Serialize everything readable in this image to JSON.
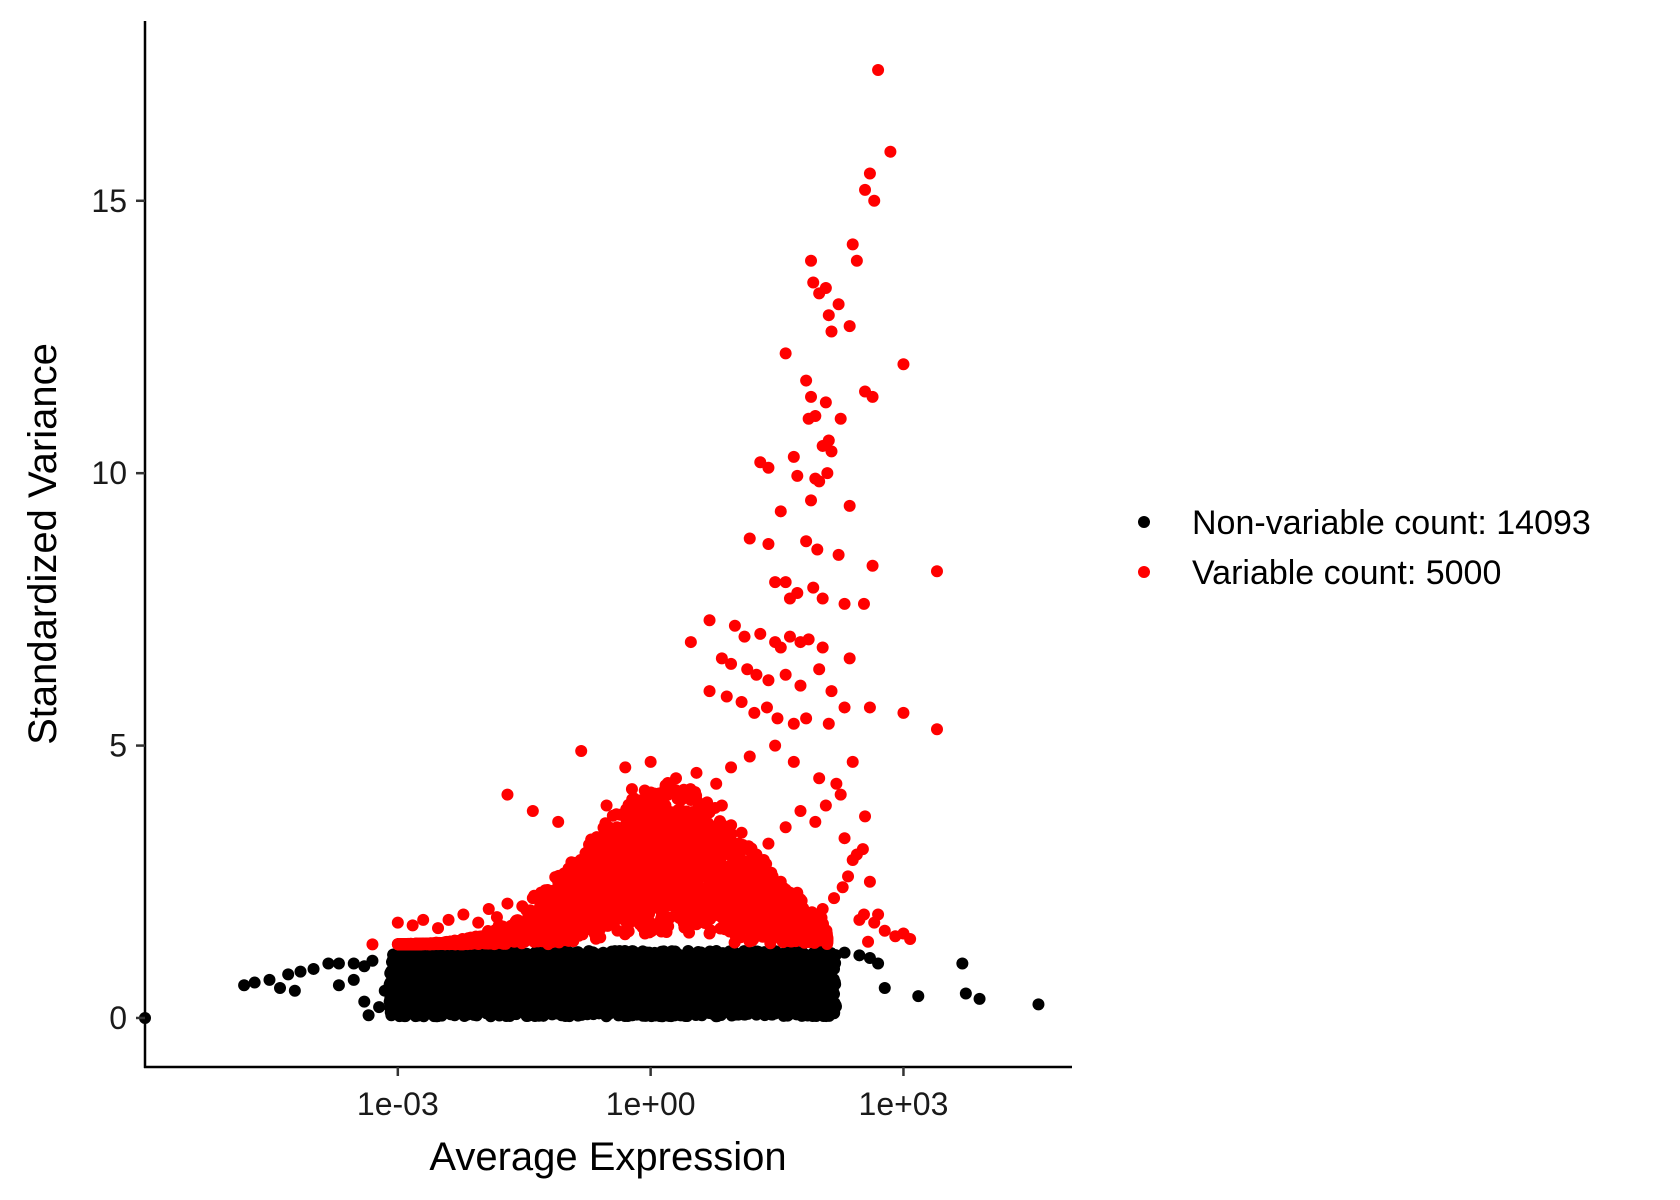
{
  "chart_data": {
    "type": "scatter",
    "title": "",
    "xlabel": "Average Expression",
    "ylabel": "Standardized Variance",
    "x_scale": "log10",
    "xlim": [
      1e-06,
      100000.0
    ],
    "ylim": [
      -0.9,
      18.3
    ],
    "x_ticks": [
      {
        "value": 0.001,
        "label": "1e-03"
      },
      {
        "value": 1,
        "label": "1e+00"
      },
      {
        "value": 1000,
        "label": "1e+03"
      }
    ],
    "y_ticks": [
      {
        "value": 0,
        "label": "0"
      },
      {
        "value": 5,
        "label": "5"
      },
      {
        "value": 10,
        "label": "10"
      },
      {
        "value": 15,
        "label": "15"
      }
    ],
    "grid": false,
    "legend_position": "right",
    "series": [
      {
        "name": "Non-variable count: 14093",
        "color": "#000000",
        "count": 14093,
        "points": [
          [
            1e-06,
            0.0
          ],
          [
            1.5e-05,
            0.6
          ],
          [
            2e-05,
            0.65
          ],
          [
            3e-05,
            0.7
          ],
          [
            5e-05,
            0.8
          ],
          [
            7e-05,
            0.85
          ],
          [
            0.0001,
            0.9
          ],
          [
            4e-05,
            0.55
          ],
          [
            6e-05,
            0.5
          ],
          [
            0.00015,
            1.0
          ],
          [
            0.0002,
            1.0
          ],
          [
            0.0003,
            1.0
          ],
          [
            0.0004,
            0.95
          ],
          [
            0.0005,
            1.05
          ],
          [
            0.0003,
            0.7
          ],
          [
            0.0004,
            0.3
          ],
          [
            0.00045,
            0.05
          ],
          [
            0.0002,
            0.6
          ],
          [
            0.0006,
            0.2
          ],
          [
            0.0008,
            0.3
          ],
          [
            0.0007,
            0.5
          ],
          [
            0.001,
            0.1
          ],
          [
            20,
            0.15
          ],
          [
            150,
            0.9
          ],
          [
            200,
            1.2
          ],
          [
            300,
            1.15
          ],
          [
            400,
            1.1
          ],
          [
            500,
            1.0
          ],
          [
            600,
            0.55
          ],
          [
            1500,
            0.4
          ],
          [
            5000,
            1.0
          ],
          [
            5500,
            0.45
          ],
          [
            8000,
            0.35
          ],
          [
            40000,
            0.25
          ]
        ]
      },
      {
        "name": "Variable count: 5000",
        "color": "#ff0000",
        "count": 5000,
        "points": [
          [
            500,
            17.4
          ],
          [
            700,
            15.9
          ],
          [
            400,
            15.5
          ],
          [
            350,
            15.2
          ],
          [
            450,
            15.0
          ],
          [
            250,
            14.2
          ],
          [
            280,
            13.9
          ],
          [
            80,
            13.9
          ],
          [
            85,
            13.5
          ],
          [
            120,
            13.4
          ],
          [
            100,
            13.3
          ],
          [
            130,
            12.9
          ],
          [
            170,
            13.1
          ],
          [
            140,
            12.6
          ],
          [
            230,
            12.7
          ],
          [
            40,
            12.2
          ],
          [
            1000,
            12.0
          ],
          [
            70,
            11.7
          ],
          [
            80,
            11.4
          ],
          [
            120,
            11.3
          ],
          [
            350,
            11.5
          ],
          [
            430,
            11.4
          ],
          [
            75,
            11.0
          ],
          [
            90,
            11.05
          ],
          [
            180,
            11.0
          ],
          [
            110,
            10.5
          ],
          [
            130,
            10.6
          ],
          [
            140,
            10.4
          ],
          [
            125,
            10.0
          ],
          [
            20,
            10.2
          ],
          [
            25,
            10.1
          ],
          [
            50,
            10.3
          ],
          [
            55,
            9.95
          ],
          [
            80,
            9.5
          ],
          [
            90,
            9.9
          ],
          [
            100,
            9.85
          ],
          [
            230,
            9.4
          ],
          [
            35,
            9.3
          ],
          [
            170,
            8.5
          ],
          [
            15,
            8.8
          ],
          [
            25,
            8.7
          ],
          [
            70,
            8.75
          ],
          [
            95,
            8.6
          ],
          [
            430,
            8.3
          ],
          [
            2500,
            8.2
          ],
          [
            30,
            8.0
          ],
          [
            40,
            8.0
          ],
          [
            45,
            7.7
          ],
          [
            55,
            7.8
          ],
          [
            85,
            7.9
          ],
          [
            110,
            7.7
          ],
          [
            200,
            7.6
          ],
          [
            340,
            7.6
          ],
          [
            5,
            7.3
          ],
          [
            10,
            7.2
          ],
          [
            13,
            7.0
          ],
          [
            20,
            7.05
          ],
          [
            30,
            6.9
          ],
          [
            35,
            6.8
          ],
          [
            45,
            7.0
          ],
          [
            60,
            6.9
          ],
          [
            75,
            6.95
          ],
          [
            110,
            6.8
          ],
          [
            3,
            6.9
          ],
          [
            7,
            6.6
          ],
          [
            9,
            6.5
          ],
          [
            14,
            6.4
          ],
          [
            18,
            6.3
          ],
          [
            25,
            6.2
          ],
          [
            40,
            6.3
          ],
          [
            60,
            6.1
          ],
          [
            100,
            6.4
          ],
          [
            140,
            6.0
          ],
          [
            230,
            6.6
          ],
          [
            5,
            6.0
          ],
          [
            8,
            5.9
          ],
          [
            12,
            5.8
          ],
          [
            17,
            5.6
          ],
          [
            24,
            5.7
          ],
          [
            32,
            5.5
          ],
          [
            50,
            5.4
          ],
          [
            70,
            5.5
          ],
          [
            130,
            5.4
          ],
          [
            200,
            5.7
          ],
          [
            400,
            5.7
          ],
          [
            1000,
            5.6
          ],
          [
            2500,
            5.3
          ],
          [
            0.15,
            4.9
          ],
          [
            0.5,
            4.6
          ],
          [
            1,
            4.7
          ],
          [
            2,
            4.4
          ],
          [
            3.5,
            4.5
          ],
          [
            6,
            4.3
          ],
          [
            9,
            4.6
          ],
          [
            15,
            4.8
          ],
          [
            30,
            5.0
          ],
          [
            50,
            4.7
          ],
          [
            100,
            4.4
          ],
          [
            160,
            4.3
          ],
          [
            250,
            4.7
          ],
          [
            350,
            3.7
          ],
          [
            180,
            4.1
          ],
          [
            120,
            3.9
          ],
          [
            90,
            3.6
          ],
          [
            60,
            3.8
          ],
          [
            40,
            3.5
          ],
          [
            0.02,
            4.1
          ],
          [
            0.04,
            3.8
          ],
          [
            0.08,
            3.6
          ],
          [
            0.3,
            3.9
          ],
          [
            0.6,
            4.2
          ],
          [
            1.5,
            3.7
          ],
          [
            3,
            4.0
          ],
          [
            7,
            3.9
          ],
          [
            12,
            3.4
          ],
          [
            25,
            3.2
          ],
          [
            200,
            3.3
          ],
          [
            330,
            3.1
          ],
          [
            280,
            3.0
          ],
          [
            250,
            2.9
          ],
          [
            220,
            2.6
          ],
          [
            190,
            2.4
          ],
          [
            150,
            2.2
          ],
          [
            110,
            2.0
          ],
          [
            90,
            1.8
          ],
          [
            70,
            1.7
          ],
          [
            400,
            2.5
          ],
          [
            500,
            1.9
          ],
          [
            600,
            1.6
          ],
          [
            800,
            1.5
          ],
          [
            1200,
            1.45
          ],
          [
            300,
            1.8
          ],
          [
            340,
            1.9
          ],
          [
            380,
            1.4
          ],
          [
            450,
            1.75
          ],
          [
            1000,
            1.55
          ],
          [
            0.001,
            1.75
          ],
          [
            0.0015,
            1.7
          ],
          [
            0.002,
            1.8
          ],
          [
            0.003,
            1.65
          ],
          [
            0.004,
            1.8
          ],
          [
            0.006,
            1.9
          ],
          [
            0.009,
            1.75
          ],
          [
            0.012,
            2.0
          ],
          [
            0.015,
            1.85
          ],
          [
            0.02,
            2.1
          ],
          [
            0.03,
            2.05
          ],
          [
            0.04,
            2.2
          ],
          [
            0.05,
            2.3
          ],
          [
            0.06,
            2.35
          ],
          [
            0.08,
            2.5
          ],
          [
            0.1,
            2.6
          ],
          [
            0.12,
            2.75
          ],
          [
            0.15,
            2.85
          ],
          [
            0.2,
            3.0
          ],
          [
            0.25,
            3.1
          ],
          [
            0.3,
            3.3
          ],
          [
            0.4,
            3.5
          ],
          [
            0.5,
            3.45
          ],
          [
            0.7,
            3.7
          ],
          [
            1,
            3.8
          ],
          [
            1.5,
            3.9
          ],
          [
            2,
            3.7
          ],
          [
            3,
            3.6
          ],
          [
            4,
            3.4
          ],
          [
            5,
            3.5
          ],
          [
            6,
            3.3
          ],
          [
            8,
            3.3
          ],
          [
            10,
            3.2
          ],
          [
            14,
            3.1
          ],
          [
            18,
            3.0
          ],
          [
            22,
            2.9
          ],
          [
            28,
            2.6
          ],
          [
            35,
            2.5
          ],
          [
            45,
            2.3
          ],
          [
            55,
            2.1
          ],
          [
            65,
            1.9
          ],
          [
            0.0005,
            1.35
          ],
          [
            0.01,
            1.5
          ],
          [
            0.02,
            1.6
          ],
          [
            0.05,
            1.7
          ],
          [
            1,
            1.6
          ],
          [
            5,
            1.55
          ],
          [
            20,
            1.6
          ],
          [
            40,
            1.5
          ],
          [
            60,
            1.45
          ],
          [
            80,
            1.45
          ]
        ],
        "note_points": "representative subset"
      }
    ]
  }
}
